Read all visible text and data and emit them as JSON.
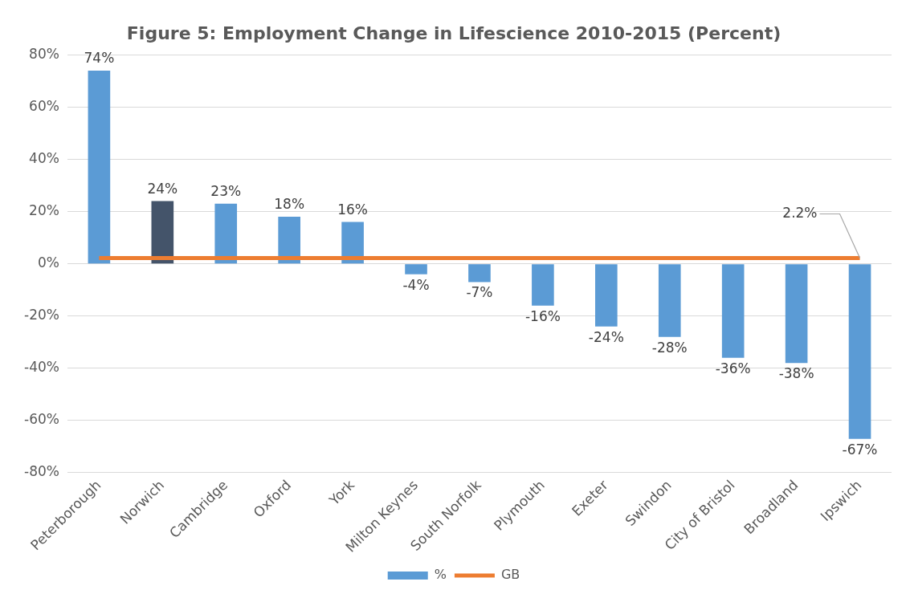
{
  "chart_data": {
    "type": "bar",
    "title": "Figure 5: Employment Change in Lifescience 2010-2015 (Percent)",
    "categories": [
      "Peterborough",
      "Norwich",
      "Cambridge",
      "Oxford",
      "York",
      "Milton Keynes",
      "South Norfolk",
      "Plymouth",
      "Exeter",
      "Swindon",
      "City of Bristol",
      "Broadland",
      "Ipswich"
    ],
    "series": [
      {
        "name": "%",
        "color": "#5b9bd5",
        "colors": [
          "#5b9bd5",
          "#44546a",
          "#5b9bd5",
          "#5b9bd5",
          "#5b9bd5",
          "#5b9bd5",
          "#5b9bd5",
          "#5b9bd5",
          "#5b9bd5",
          "#5b9bd5",
          "#5b9bd5",
          "#5b9bd5",
          "#5b9bd5"
        ],
        "values": [
          74,
          24,
          23,
          18,
          16,
          -4,
          -7,
          -16,
          -24,
          -28,
          -36,
          -38,
          -67
        ],
        "value_labels": [
          "74%",
          "24%",
          "23%",
          "18%",
          "16%",
          "-4%",
          "-7%",
          "-16%",
          "-24%",
          "-28%",
          "-36%",
          "-38%",
          "-67%"
        ]
      },
      {
        "name": "GB",
        "type": "line",
        "color": "#ed7d31",
        "values": [
          2.2,
          2.2,
          2.2,
          2.2,
          2.2,
          2.2,
          2.2,
          2.2,
          2.2,
          2.2,
          2.2,
          2.2,
          2.2
        ]
      }
    ],
    "ylim": [
      -80,
      80
    ],
    "yticks": [
      {
        "value": -80,
        "label": "-80%"
      },
      {
        "value": -60,
        "label": "-60%"
      },
      {
        "value": -40,
        "label": "-40%"
      },
      {
        "value": -20,
        "label": "-20%"
      },
      {
        "value": 0,
        "label": "0%"
      },
      {
        "value": 20,
        "label": "20%"
      },
      {
        "value": 40,
        "label": "40%"
      },
      {
        "value": 60,
        "label": "60%"
      },
      {
        "value": 80,
        "label": "80%"
      }
    ],
    "annotations": [
      {
        "text": "2.2%",
        "x": "Ipswich",
        "y": 2.2
      }
    ],
    "grid": "y",
    "legend": "bottom",
    "marker": "none",
    "line_style": "solid"
  }
}
